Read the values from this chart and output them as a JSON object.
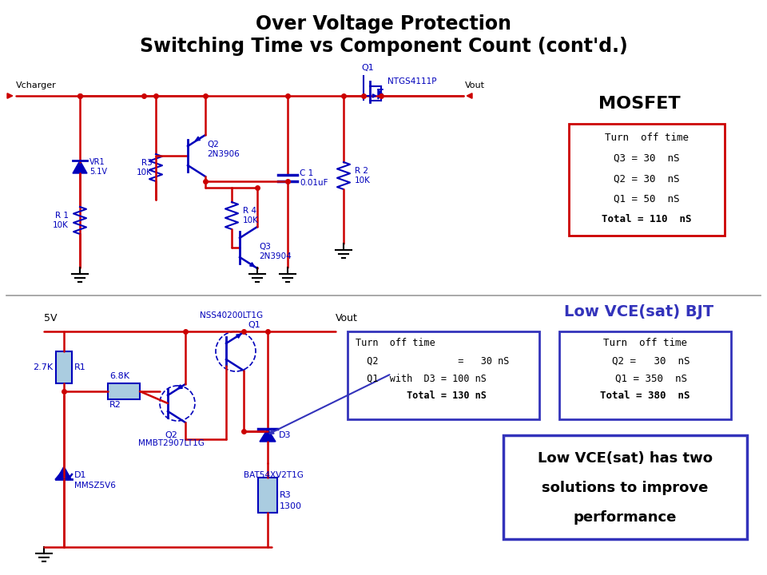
{
  "title_line1": "Over Voltage Protection",
  "title_line2": "Switching Time vs Component Count (cont'd.)",
  "title_fontsize": 17,
  "title_color": "#000000",
  "bg_color": "#ffffff",
  "mosfet_label": "MOSFET",
  "mosfet_box_lines": [
    "Turn  off time",
    "Q3 = 30  nS",
    "Q2 = 30  nS",
    "Q1 = 50  nS",
    "Total = 110  nS"
  ],
  "low_vce_label": "Low VCE(sat) BJT",
  "low_vce_label_color": "#3333bb",
  "box_center_lines": [
    "Turn  off time",
    "  Q2              =   30 nS",
    "  Q1  with  D3 = 100 nS",
    "         Total = 130 nS"
  ],
  "box_right_lines": [
    "Turn  off time",
    "  Q2 =   30  nS",
    "  Q1 = 350  nS",
    "Total = 380  nS"
  ],
  "promo_box_lines": [
    "Low VCE(sat) has two",
    "solutions to improve",
    "performance"
  ],
  "wire_color": "#cc0000",
  "comp_color": "#0000bb",
  "gnd_color": "#000000"
}
